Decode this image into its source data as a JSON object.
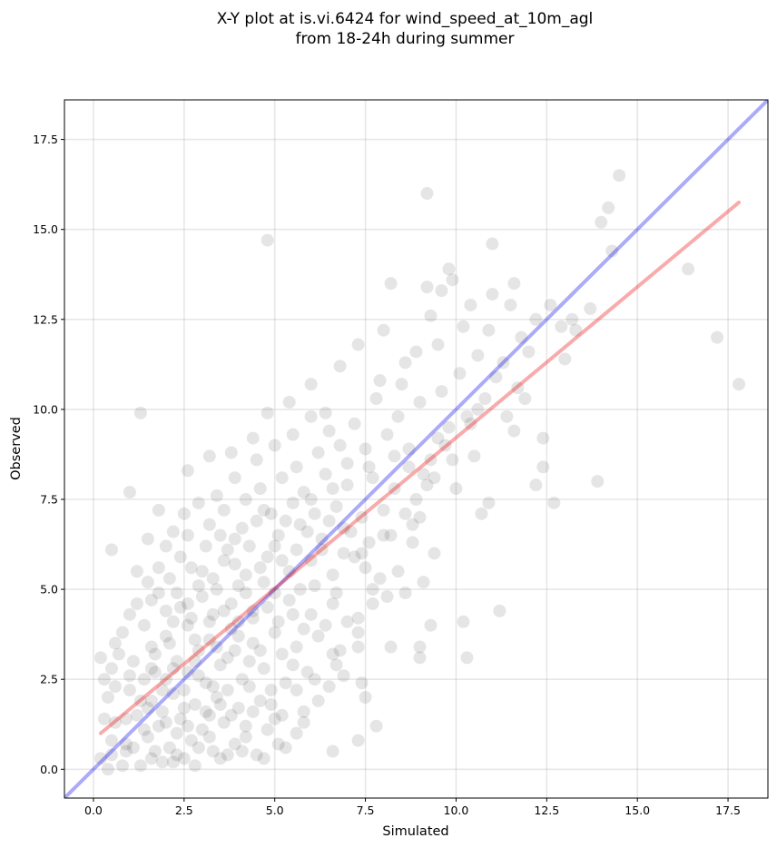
{
  "chart_data": {
    "type": "scatter",
    "title_lines": [
      "X-Y plot at is.vi.6424 for wind_speed_at_10m_agl",
      "from 18-24h during summer"
    ],
    "xlabel": "Simulated",
    "ylabel": "Observed",
    "xlim": [
      -0.8,
      18.6
    ],
    "ylim": [
      -0.8,
      18.6
    ],
    "xticks": [
      0.0,
      2.5,
      5.0,
      7.5,
      10.0,
      12.5,
      15.0,
      17.5
    ],
    "yticks": [
      0.0,
      2.5,
      5.0,
      7.5,
      10.0,
      12.5,
      15.0,
      17.5
    ],
    "tick_labels": [
      "0.0",
      "2.5",
      "5.0",
      "7.5",
      "10.0",
      "12.5",
      "15.0",
      "17.5"
    ],
    "grid": true,
    "point_color": "#000000",
    "point_alpha": 0.1,
    "points": [
      [
        4.8,
        14.7
      ],
      [
        9.2,
        16.0
      ],
      [
        14.5,
        16.5
      ],
      [
        14.2,
        15.6
      ],
      [
        14.0,
        15.2
      ],
      [
        14.3,
        14.4
      ],
      [
        11.0,
        14.6
      ],
      [
        16.4,
        13.9
      ],
      [
        17.2,
        12.0
      ],
      [
        17.8,
        10.7
      ],
      [
        13.9,
        8.0
      ],
      [
        12.7,
        7.4
      ],
      [
        12.4,
        8.4
      ],
      [
        12.4,
        9.2
      ],
      [
        12.2,
        7.9
      ],
      [
        11.2,
        4.4
      ],
      [
        10.3,
        3.1
      ],
      [
        10.2,
        4.1
      ],
      [
        9.0,
        3.4
      ],
      [
        9.0,
        3.1
      ],
      [
        9.3,
        4.0
      ],
      [
        8.2,
        3.4
      ],
      [
        7.8,
        1.2
      ],
      [
        7.3,
        0.8
      ],
      [
        6.6,
        0.5
      ],
      [
        5.3,
        0.6
      ],
      [
        5.1,
        0.7
      ],
      [
        1.3,
        9.9
      ],
      [
        1.0,
        7.7
      ],
      [
        0.5,
        6.1
      ],
      [
        8.2,
        13.5
      ],
      [
        9.8,
        13.9
      ],
      [
        9.9,
        13.6
      ],
      [
        9.2,
        13.4
      ],
      [
        9.6,
        13.3
      ],
      [
        11.0,
        13.2
      ],
      [
        11.6,
        13.5
      ],
      [
        12.6,
        12.9
      ],
      [
        13.2,
        12.5
      ],
      [
        13.7,
        12.8
      ],
      [
        13.3,
        12.2
      ],
      [
        12.2,
        12.5
      ],
      [
        11.8,
        12.0
      ],
      [
        13.0,
        11.4
      ],
      [
        11.9,
        10.3
      ],
      [
        11.6,
        9.4
      ],
      [
        10.5,
        8.7
      ],
      [
        10.9,
        7.4
      ],
      [
        10.7,
        7.1
      ],
      [
        9.4,
        8.1
      ],
      [
        9.0,
        7.0
      ],
      [
        8.8,
        6.3
      ],
      [
        8.4,
        5.5
      ],
      [
        8.6,
        4.9
      ],
      [
        9.1,
        5.2
      ],
      [
        7.7,
        4.6
      ],
      [
        7.3,
        3.8
      ],
      [
        6.6,
        3.2
      ],
      [
        7.4,
        2.4
      ],
      [
        7.5,
        2.0
      ],
      [
        6.9,
        2.6
      ],
      [
        6.2,
        1.9
      ],
      [
        5.6,
        2.2
      ],
      [
        5.8,
        1.6
      ],
      [
        4.9,
        1.8
      ],
      [
        4.2,
        1.2
      ],
      [
        3.7,
        0.4
      ],
      [
        3.2,
        0.9
      ],
      [
        2.8,
        0.1
      ],
      [
        2.2,
        0.2
      ],
      [
        1.6,
        0.3
      ],
      [
        0.9,
        0.5
      ],
      [
        0.5,
        0.8
      ],
      [
        0.3,
        1.4
      ],
      [
        0.2,
        3.1
      ],
      [
        0.6,
        3.5
      ],
      [
        1.2,
        5.5
      ],
      [
        1.5,
        6.4
      ],
      [
        1.8,
        7.2
      ],
      [
        2.2,
        6.6
      ],
      [
        2.6,
        8.3
      ],
      [
        3.2,
        8.7
      ],
      [
        3.8,
        8.8
      ],
      [
        4.4,
        9.2
      ],
      [
        4.8,
        9.9
      ],
      [
        5.4,
        10.2
      ],
      [
        6.0,
        10.7
      ],
      [
        6.8,
        11.2
      ],
      [
        7.3,
        11.8
      ],
      [
        8.0,
        12.2
      ],
      [
        8.6,
        11.3
      ],
      [
        9.3,
        12.6
      ],
      [
        10.2,
        12.3
      ],
      [
        6.5,
        9.4
      ],
      [
        7.2,
        9.6
      ],
      [
        7.8,
        10.3
      ],
      [
        8.4,
        9.8
      ],
      [
        9.6,
        10.5
      ],
      [
        10.1,
        11.0
      ],
      [
        10.6,
        11.5
      ],
      [
        11.1,
        10.9
      ],
      [
        5.6,
        8.4
      ],
      [
        6.2,
        8.8
      ],
      [
        6.8,
        9.0
      ],
      [
        7.5,
        8.9
      ],
      [
        8.1,
        9.3
      ],
      [
        8.7,
        8.9
      ],
      [
        9.5,
        9.2
      ],
      [
        10.4,
        9.6
      ],
      [
        11.4,
        9.8
      ],
      [
        4.6,
        7.8
      ],
      [
        5.2,
        8.1
      ],
      [
        5.8,
        7.7
      ],
      [
        6.4,
        8.2
      ],
      [
        7.0,
        7.9
      ],
      [
        7.7,
        8.1
      ],
      [
        8.3,
        7.8
      ],
      [
        9.1,
        8.2
      ],
      [
        9.9,
        8.6
      ],
      [
        3.6,
        7.2
      ],
      [
        4.2,
        7.5
      ],
      [
        4.9,
        7.1
      ],
      [
        5.5,
        7.4
      ],
      [
        6.1,
        7.1
      ],
      [
        6.7,
        7.3
      ],
      [
        7.4,
        7.0
      ],
      [
        8.0,
        7.2
      ],
      [
        8.9,
        7.5
      ],
      [
        2.6,
        6.5
      ],
      [
        3.2,
        6.8
      ],
      [
        3.9,
        6.4
      ],
      [
        4.5,
        6.9
      ],
      [
        5.1,
        6.5
      ],
      [
        5.7,
        6.8
      ],
      [
        6.3,
        6.4
      ],
      [
        6.9,
        6.7
      ],
      [
        7.6,
        6.3
      ],
      [
        1.8,
        5.6
      ],
      [
        2.4,
        5.9
      ],
      [
        3.0,
        5.5
      ],
      [
        3.6,
        5.8
      ],
      [
        4.2,
        5.4
      ],
      [
        4.8,
        5.9
      ],
      [
        5.4,
        5.5
      ],
      [
        6.0,
        5.8
      ],
      [
        6.6,
        5.4
      ],
      [
        7.2,
        5.9
      ],
      [
        7.9,
        5.3
      ],
      [
        1.2,
        4.6
      ],
      [
        1.8,
        4.9
      ],
      [
        2.4,
        4.5
      ],
      [
        3.0,
        4.8
      ],
      [
        3.6,
        4.4
      ],
      [
        4.2,
        4.9
      ],
      [
        4.8,
        4.5
      ],
      [
        5.4,
        4.7
      ],
      [
        6.0,
        4.3
      ],
      [
        6.6,
        4.6
      ],
      [
        7.3,
        4.2
      ],
      [
        0.8,
        3.8
      ],
      [
        1.4,
        4.0
      ],
      [
        2.0,
        3.7
      ],
      [
        2.6,
        4.0
      ],
      [
        3.2,
        3.6
      ],
      [
        3.8,
        3.9
      ],
      [
        4.4,
        3.5
      ],
      [
        5.0,
        3.8
      ],
      [
        5.6,
        3.4
      ],
      [
        6.2,
        3.7
      ],
      [
        6.8,
        3.3
      ],
      [
        0.5,
        2.8
      ],
      [
        1.1,
        3.0
      ],
      [
        1.7,
        2.7
      ],
      [
        2.3,
        3.0
      ],
      [
        2.9,
        2.6
      ],
      [
        3.5,
        2.9
      ],
      [
        4.1,
        2.5
      ],
      [
        4.7,
        2.8
      ],
      [
        5.3,
        2.4
      ],
      [
        5.9,
        2.7
      ],
      [
        6.5,
        2.3
      ],
      [
        0.4,
        2.0
      ],
      [
        1.0,
        2.2
      ],
      [
        1.6,
        1.9
      ],
      [
        2.2,
        2.1
      ],
      [
        2.8,
        1.8
      ],
      [
        3.4,
        2.0
      ],
      [
        4.0,
        1.7
      ],
      [
        4.6,
        1.9
      ],
      [
        5.2,
        1.5
      ],
      [
        5.8,
        1.3
      ],
      [
        0.6,
        1.3
      ],
      [
        1.2,
        1.5
      ],
      [
        1.8,
        1.2
      ],
      [
        2.4,
        1.4
      ],
      [
        3.0,
        1.1
      ],
      [
        3.6,
        1.3
      ],
      [
        4.2,
        0.9
      ],
      [
        4.8,
        1.1
      ],
      [
        0.9,
        0.7
      ],
      [
        1.5,
        0.9
      ],
      [
        2.1,
        0.6
      ],
      [
        2.7,
        0.8
      ],
      [
        3.3,
        0.5
      ],
      [
        3.9,
        0.7
      ],
      [
        4.5,
        0.4
      ],
      [
        1.9,
        0.2
      ],
      [
        2.5,
        0.3
      ],
      [
        1.3,
        0.1
      ],
      [
        1.6,
        3.4
      ],
      [
        2.0,
        2.5
      ],
      [
        2.5,
        2.2
      ],
      [
        2.9,
        3.3
      ],
      [
        3.3,
        2.3
      ],
      [
        3.7,
        3.1
      ],
      [
        4.3,
        3.0
      ],
      [
        1.4,
        2.5
      ],
      [
        1.9,
        1.6
      ],
      [
        2.3,
        1.0
      ],
      [
        2.6,
        2.7
      ],
      [
        3.1,
        1.6
      ],
      [
        3.5,
        1.8
      ],
      [
        2.1,
        3.5
      ],
      [
        1.5,
        1.7
      ],
      [
        2.7,
        4.2
      ],
      [
        3.3,
        4.3
      ],
      [
        4.0,
        4.1
      ],
      [
        2.2,
        4.1
      ],
      [
        1.7,
        3.2
      ],
      [
        2.8,
        3.6
      ],
      [
        3.9,
        3.3
      ],
      [
        4.4,
        4.2
      ],
      [
        5.1,
        4.1
      ],
      [
        5.7,
        5.0
      ],
      [
        4.7,
        5.2
      ],
      [
        4.0,
        5.1
      ],
      [
        3.4,
        5.0
      ],
      [
        2.9,
        5.1
      ],
      [
        2.3,
        4.9
      ],
      [
        2.0,
        4.4
      ],
      [
        5.0,
        6.2
      ],
      [
        5.6,
        6.1
      ],
      [
        4.3,
        6.2
      ],
      [
        3.7,
        6.1
      ],
      [
        3.1,
        6.2
      ],
      [
        6.3,
        6.1
      ],
      [
        6.9,
        6.0
      ],
      [
        7.5,
        5.6
      ],
      [
        8.2,
        6.5
      ],
      [
        8.8,
        6.8
      ],
      [
        9.4,
        6.0
      ],
      [
        10.0,
        7.8
      ],
      [
        10.8,
        10.3
      ],
      [
        11.3,
        11.3
      ],
      [
        9.0,
        10.2
      ],
      [
        8.5,
        10.7
      ],
      [
        7.9,
        10.8
      ],
      [
        8.9,
        11.6
      ],
      [
        10.4,
        12.9
      ],
      [
        9.5,
        11.8
      ],
      [
        10.9,
        12.2
      ],
      [
        11.5,
        12.9
      ],
      [
        12.0,
        11.6
      ],
      [
        6.0,
        9.8
      ],
      [
        5.5,
        9.3
      ],
      [
        5.0,
        9.0
      ],
      [
        4.5,
        8.6
      ],
      [
        3.9,
        8.1
      ],
      [
        3.4,
        7.6
      ],
      [
        2.9,
        7.4
      ],
      [
        2.5,
        7.1
      ],
      [
        2.0,
        6.2
      ],
      [
        1.5,
        5.2
      ],
      [
        1.0,
        4.3
      ],
      [
        0.7,
        3.2
      ],
      [
        0.3,
        2.5
      ],
      [
        0.2,
        0.3
      ],
      [
        0.4,
        0.0
      ],
      [
        0.8,
        0.1
      ],
      [
        6.4,
        9.9
      ],
      [
        7.0,
        8.5
      ],
      [
        7.6,
        8.4
      ],
      [
        6.6,
        7.8
      ],
      [
        6.0,
        7.5
      ],
      [
        5.3,
        6.9
      ],
      [
        4.7,
        7.2
      ],
      [
        4.1,
        6.7
      ],
      [
        3.5,
        6.5
      ],
      [
        5.9,
        6.6
      ],
      [
        6.5,
        6.9
      ],
      [
        7.1,
        6.6
      ],
      [
        5.2,
        5.8
      ],
      [
        4.6,
        5.6
      ],
      [
        3.9,
        5.7
      ],
      [
        3.3,
        5.3
      ],
      [
        2.7,
        5.6
      ],
      [
        2.1,
        5.3
      ],
      [
        1.6,
        4.7
      ],
      [
        2.6,
        4.6
      ],
      [
        3.2,
        4.1
      ],
      [
        3.8,
        4.6
      ],
      [
        4.4,
        4.4
      ],
      [
        5.0,
        4.9
      ],
      [
        5.5,
        4.3
      ],
      [
        6.1,
        5.1
      ],
      [
        6.7,
        4.9
      ],
      [
        7.7,
        5.0
      ],
      [
        8.1,
        4.8
      ],
      [
        7.0,
        4.1
      ],
      [
        6.4,
        4.0
      ],
      [
        5.8,
        3.9
      ],
      [
        5.2,
        3.2
      ],
      [
        4.6,
        3.3
      ],
      [
        4.0,
        3.7
      ],
      [
        3.4,
        3.4
      ],
      [
        2.8,
        3.0
      ],
      [
        2.2,
        2.8
      ],
      [
        1.6,
        2.8
      ],
      [
        1.0,
        2.6
      ],
      [
        0.6,
        2.3
      ],
      [
        1.3,
        1.9
      ],
      [
        1.9,
        2.2
      ],
      [
        2.5,
        1.7
      ],
      [
        3.1,
        2.4
      ],
      [
        3.7,
        2.2
      ],
      [
        4.3,
        2.3
      ],
      [
        4.9,
        2.2
      ],
      [
        5.5,
        2.9
      ],
      [
        6.1,
        2.5
      ],
      [
        6.7,
        2.9
      ],
      [
        7.3,
        3.4
      ],
      [
        0.9,
        1.4
      ],
      [
        1.4,
        1.1
      ],
      [
        2.0,
        1.3
      ],
      [
        2.6,
        1.2
      ],
      [
        3.2,
        1.5
      ],
      [
        3.8,
        1.5
      ],
      [
        4.4,
        1.6
      ],
      [
        5.0,
        1.4
      ],
      [
        5.6,
        1.0
      ],
      [
        0.5,
        0.4
      ],
      [
        1.1,
        0.6
      ],
      [
        1.7,
        0.5
      ],
      [
        2.3,
        0.4
      ],
      [
        2.9,
        0.6
      ],
      [
        3.5,
        0.3
      ],
      [
        4.1,
        0.5
      ],
      [
        4.7,
        0.3
      ],
      [
        9.7,
        9.0
      ],
      [
        10.3,
        9.8
      ],
      [
        9.2,
        7.9
      ],
      [
        8.6,
        7.1
      ],
      [
        8.0,
        6.5
      ],
      [
        7.4,
        6.0
      ],
      [
        12.9,
        12.3
      ],
      [
        11.7,
        10.6
      ],
      [
        10.6,
        10.0
      ],
      [
        9.8,
        9.5
      ],
      [
        9.3,
        8.6
      ],
      [
        8.7,
        8.4
      ],
      [
        8.3,
        8.7
      ]
    ],
    "series": [
      {
        "kind": "identity-line",
        "color": "#0000ee",
        "alpha": 0.33,
        "x": [
          -0.8,
          18.6
        ],
        "y": [
          -0.8,
          18.6
        ]
      },
      {
        "kind": "fit-line",
        "color": "#ee0000",
        "alpha": 0.33,
        "x": [
          0.2,
          17.8
        ],
        "y": [
          1.0,
          15.75
        ]
      }
    ]
  }
}
